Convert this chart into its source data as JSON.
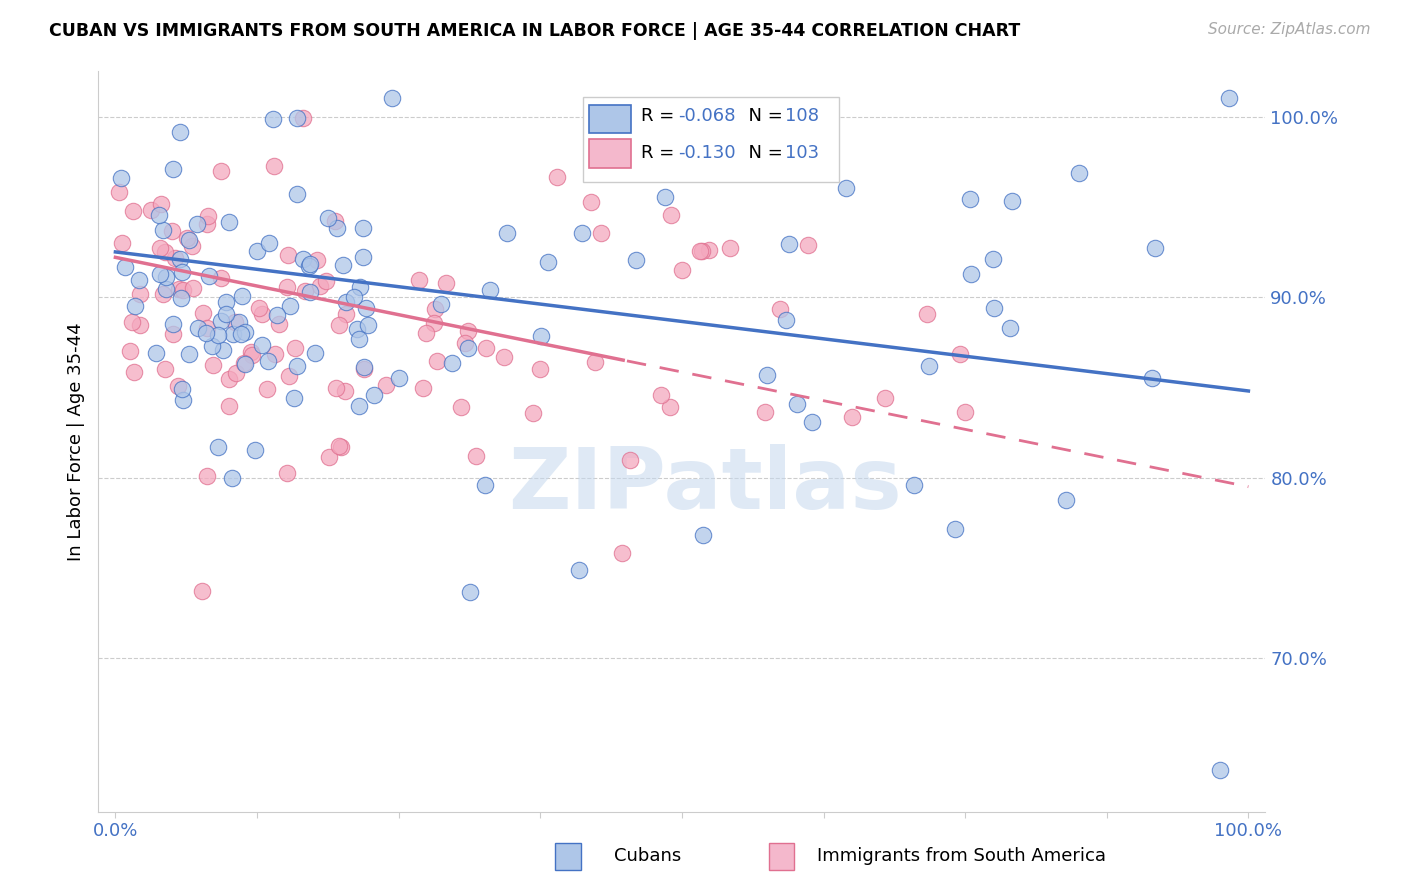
{
  "title": "CUBAN VS IMMIGRANTS FROM SOUTH AMERICA IN LABOR FORCE | AGE 35-44 CORRELATION CHART",
  "source": "Source: ZipAtlas.com",
  "ylabel": "In Labor Force | Age 35-44",
  "blue_color": "#aec6e8",
  "pink_color": "#f4a8be",
  "blue_line_color": "#4472c4",
  "pink_line_color": "#e07090",
  "legend_blue_fill": "#aec6e8",
  "legend_pink_fill": "#f4b8cc",
  "watermark": "ZIPatlas",
  "cubans_R": -0.068,
  "cubans_N": 108,
  "south_america_R": -0.13,
  "south_america_N": 103,
  "blue_line_x0": 0.0,
  "blue_line_y0": 0.925,
  "blue_line_x1": 1.0,
  "blue_line_y1": 0.848,
  "pink_line_x0": 0.0,
  "pink_line_y0": 0.922,
  "pink_line_x1": 1.0,
  "pink_line_y1": 0.795,
  "ylim_low": 0.615,
  "ylim_high": 1.025,
  "xlim_low": -0.015,
  "xlim_high": 1.015
}
